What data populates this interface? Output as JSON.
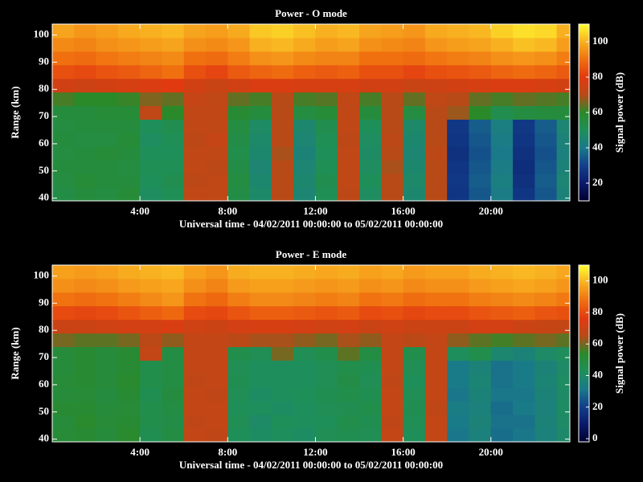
{
  "chart_data": [
    {
      "type": "heatmap",
      "title": "Power - O mode",
      "xlabel": "Universal time - 04/02/2011 00:00:00 to 05/02/2011 00:00:00",
      "ylabel": "Range (km)",
      "colorbar_label": "Signal power (dB)",
      "xbins": [
        0,
        1,
        2,
        3,
        4,
        5,
        6,
        7,
        8,
        9,
        10,
        11,
        12,
        13,
        14,
        15,
        16,
        17,
        18,
        19,
        20,
        21,
        22,
        23,
        23.6
      ],
      "ybins": [
        39,
        44,
        49,
        54,
        59,
        64,
        69,
        74,
        79,
        84,
        89,
        94,
        99,
        104
      ],
      "xlim": [
        0,
        23.6
      ],
      "ylim": [
        39,
        104
      ],
      "xticks": [
        {
          "value": 4,
          "label": "4:00"
        },
        {
          "value": 8,
          "label": "8:00"
        },
        {
          "value": 12,
          "label": "12:00"
        },
        {
          "value": 16,
          "label": "16:00"
        },
        {
          "value": 20,
          "label": "20:00"
        }
      ],
      "yticks": [
        40,
        50,
        60,
        70,
        80,
        90,
        100
      ],
      "zlim": [
        10,
        110
      ],
      "zticks": [
        20,
        40,
        60,
        80,
        100
      ],
      "colormap": [
        "#000030",
        "#0a1a6a",
        "#12408c",
        "#1a7a8a",
        "#1f8f5a",
        "#2a8a2a",
        "#b84a18",
        "#e23a10",
        "#f07010",
        "#f8b020",
        "#ffff30"
      ],
      "values": [
        [
          54,
          56,
          55,
          57,
          49,
          51,
          72,
          72,
          54,
          47,
          70,
          45,
          51,
          71,
          49,
          70,
          46,
          70,
          27,
          34,
          41,
          27,
          34,
          44
        ],
        [
          55,
          57,
          56,
          56,
          50,
          52,
          71,
          72,
          55,
          46,
          70,
          46,
          52,
          72,
          50,
          70,
          47,
          70,
          28,
          35,
          42,
          26,
          35,
          45
        ],
        [
          56,
          56,
          56,
          55,
          51,
          51,
          72,
          71,
          54,
          45,
          70,
          45,
          51,
          72,
          49,
          69,
          46,
          70,
          27,
          34,
          41,
          25,
          34,
          44
        ],
        [
          55,
          56,
          57,
          56,
          50,
          50,
          72,
          72,
          53,
          46,
          69,
          44,
          50,
          72,
          48,
          70,
          45,
          71,
          26,
          33,
          40,
          26,
          33,
          43
        ],
        [
          56,
          55,
          55,
          57,
          49,
          51,
          71,
          73,
          54,
          47,
          70,
          45,
          51,
          71,
          49,
          71,
          46,
          70,
          27,
          34,
          41,
          27,
          34,
          44
        ],
        [
          55,
          56,
          56,
          56,
          50,
          52,
          72,
          72,
          55,
          48,
          70,
          46,
          52,
          72,
          50,
          70,
          47,
          70,
          28,
          35,
          42,
          28,
          35,
          45
        ],
        [
          56,
          56,
          57,
          57,
          72,
          60,
          72,
          72,
          58,
          56,
          70,
          55,
          57,
          72,
          56,
          70,
          55,
          70,
          68,
          60,
          52,
          55,
          56,
          56
        ],
        [
          62,
          60,
          60,
          61,
          66,
          64,
          73,
          72,
          64,
          62,
          70,
          62,
          63,
          72,
          62,
          70,
          64,
          72,
          70,
          64,
          62,
          64,
          63,
          62
        ],
        [
          76,
          75,
          76,
          77,
          78,
          80,
          76,
          74,
          76,
          78,
          78,
          77,
          77,
          77,
          76,
          76,
          74,
          75,
          76,
          77,
          78,
          78,
          77,
          76
        ],
        [
          84,
          83,
          85,
          86,
          88,
          90,
          84,
          82,
          86,
          88,
          89,
          87,
          86,
          87,
          84,
          84,
          82,
          84,
          85,
          86,
          88,
          89,
          88,
          86
        ],
        [
          90,
          89,
          91,
          92,
          93,
          94,
          90,
          89,
          92,
          95,
          96,
          94,
          93,
          93,
          90,
          90,
          89,
          91,
          92,
          93,
          95,
          96,
          95,
          92
        ],
        [
          94,
          93,
          95,
          96,
          97,
          98,
          95,
          94,
          96,
          100,
          101,
          99,
          97,
          98,
          95,
          94,
          93,
          96,
          97,
          98,
          100,
          102,
          101,
          97
        ],
        [
          98,
          96,
          97,
          99,
          100,
          101,
          98,
          97,
          99,
          103,
          104,
          102,
          100,
          101,
          98,
          97,
          96,
          99,
          100,
          101,
          104,
          106,
          105,
          100
        ]
      ]
    },
    {
      "type": "heatmap",
      "title": "Power - E mode",
      "xlabel": "Universal time - 04/02/2011 00:00:00 to 05/02/2011 00:00:00",
      "ylabel": "Range (km)",
      "colorbar_label": "Signal power (dB)",
      "xbins": [
        0,
        1,
        2,
        3,
        4,
        5,
        6,
        7,
        8,
        9,
        10,
        11,
        12,
        13,
        14,
        15,
        16,
        17,
        18,
        19,
        20,
        21,
        22,
        23,
        23.6
      ],
      "ybins": [
        39,
        44,
        49,
        54,
        59,
        64,
        69,
        74,
        79,
        84,
        89,
        94,
        99,
        104
      ],
      "xlim": [
        0,
        23.6
      ],
      "ylim": [
        39,
        104
      ],
      "xticks": [
        {
          "value": 4,
          "label": "4:00"
        },
        {
          "value": 8,
          "label": "8:00"
        },
        {
          "value": 12,
          "label": "12:00"
        },
        {
          "value": 16,
          "label": "16:00"
        },
        {
          "value": 20,
          "label": "20:00"
        }
      ],
      "yticks": [
        40,
        50,
        60,
        70,
        80,
        90,
        100
      ],
      "zlim": [
        -2,
        110
      ],
      "zticks": [
        0,
        20,
        40,
        60,
        80,
        100
      ],
      "colormap": [
        "#000030",
        "#0a1a6a",
        "#12408c",
        "#1a7a8a",
        "#1f8f5a",
        "#2a8a2a",
        "#b84a18",
        "#e23a10",
        "#f07010",
        "#f8b020",
        "#ffff30"
      ],
      "values": [
        [
          51,
          52,
          50,
          53,
          45,
          48,
          68,
          67,
          43,
          41,
          42,
          41,
          44,
          45,
          44,
          68,
          43,
          68,
          31,
          35,
          29,
          31,
          35,
          39
        ],
        [
          50,
          53,
          51,
          52,
          46,
          47,
          67,
          68,
          44,
          40,
          43,
          42,
          43,
          46,
          45,
          67,
          44,
          68,
          32,
          36,
          30,
          30,
          36,
          40
        ],
        [
          52,
          52,
          50,
          51,
          46,
          48,
          68,
          68,
          43,
          42,
          41,
          42,
          44,
          45,
          46,
          68,
          45,
          67,
          33,
          35,
          29,
          32,
          35,
          41
        ],
        [
          50,
          51,
          49,
          52,
          45,
          49,
          68,
          67,
          44,
          41,
          42,
          43,
          45,
          46,
          45,
          68,
          44,
          68,
          31,
          36,
          31,
          31,
          36,
          40
        ],
        [
          51,
          52,
          50,
          53,
          46,
          48,
          67,
          68,
          45,
          42,
          42,
          42,
          44,
          47,
          44,
          67,
          43,
          68,
          32,
          37,
          30,
          32,
          37,
          41
        ],
        [
          50,
          52,
          50,
          52,
          46,
          48,
          68,
          68,
          44,
          42,
          42,
          42,
          44,
          46,
          45,
          68,
          44,
          68,
          32,
          36,
          30,
          32,
          36,
          40
        ],
        [
          50,
          52,
          50,
          52,
          68,
          48,
          68,
          68,
          46,
          44,
          60,
          44,
          46,
          58,
          48,
          68,
          46,
          68,
          42,
          46,
          38,
          36,
          40,
          42
        ],
        [
          60,
          58,
          58,
          60,
          66,
          62,
          68,
          68,
          66,
          64,
          64,
          62,
          60,
          64,
          62,
          68,
          66,
          68,
          62,
          58,
          56,
          58,
          60,
          58
        ],
        [
          70,
          70,
          71,
          72,
          72,
          74,
          71,
          70,
          72,
          73,
          73,
          72,
          71,
          72,
          70,
          71,
          70,
          70,
          70,
          72,
          72,
          70,
          69,
          68
        ],
        [
          80,
          79,
          80,
          82,
          84,
          86,
          80,
          79,
          82,
          84,
          84,
          83,
          82,
          83,
          80,
          81,
          79,
          80,
          80,
          82,
          83,
          84,
          82,
          81
        ],
        [
          88,
          87,
          88,
          90,
          92,
          94,
          88,
          86,
          90,
          92,
          92,
          91,
          90,
          91,
          88,
          89,
          87,
          88,
          88,
          90,
          91,
          92,
          91,
          89
        ],
        [
          93,
          92,
          93,
          95,
          96,
          97,
          93,
          91,
          95,
          96,
          96,
          95,
          94,
          95,
          93,
          94,
          92,
          93,
          93,
          95,
          96,
          97,
          96,
          94
        ],
        [
          96,
          95,
          96,
          98,
          99,
          100,
          96,
          94,
          98,
          99,
          99,
          98,
          97,
          98,
          96,
          97,
          95,
          96,
          96,
          98,
          99,
          100,
          99,
          97
        ]
      ]
    }
  ]
}
